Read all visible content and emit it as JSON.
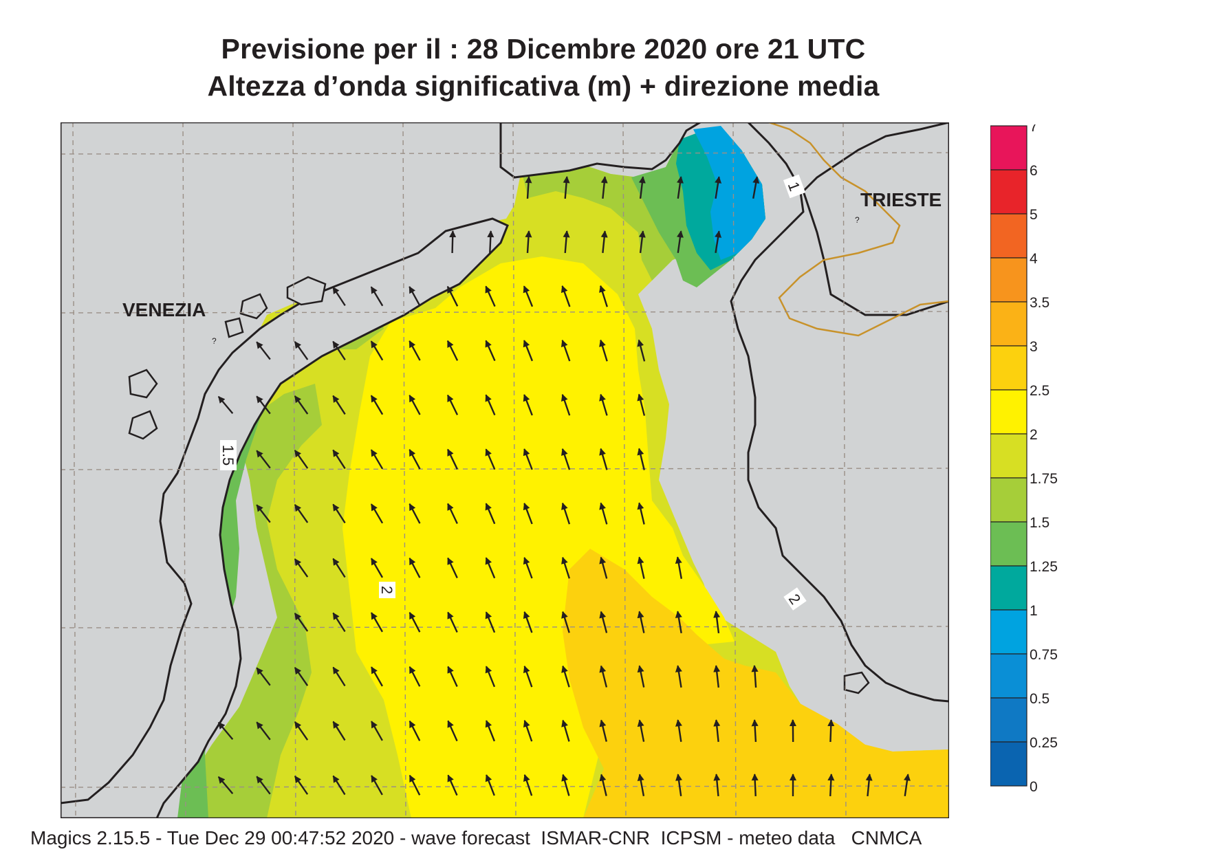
{
  "title": {
    "line1": "Previsione per il  :  28 Dicembre  2020   ore 21 UTC",
    "line2": "Altezza d’onda significativa (m) + direzione media"
  },
  "places": {
    "venezia": "VENEZIA",
    "trieste": "TRIESTE",
    "marker": "?"
  },
  "contour_labels": [
    "1",
    "1.5",
    "2",
    "2"
  ],
  "legend": {
    "labels": [
      "7",
      "6",
      "5",
      "4",
      "3.5",
      "3",
      "2.5",
      "2",
      "1.75",
      "1.5",
      "1.25",
      "1",
      "0.75",
      "0.5",
      "0.25",
      "0"
    ],
    "colors": [
      "#e8155a",
      "#e8242a",
      "#f26522",
      "#f7941d",
      "#fbb216",
      "#fcd10e",
      "#fff200",
      "#d7df23",
      "#a6ce39",
      "#6cbe54",
      "#00a99d",
      "#00a3e0",
      "#0a8fd6",
      "#0f79c4",
      "#0a64b0"
    ]
  },
  "colors": {
    "land": "#d1d3d4",
    "coast": "#231f20",
    "border": "#c8922a",
    "grid": "#9a8f86"
  },
  "footer": "Magics 2.15.5 - Tue Dec 29 00:47:52 2020 - wave forecast  ISMAR-CNR  ICPSM - meteo data   CNMCA"
}
